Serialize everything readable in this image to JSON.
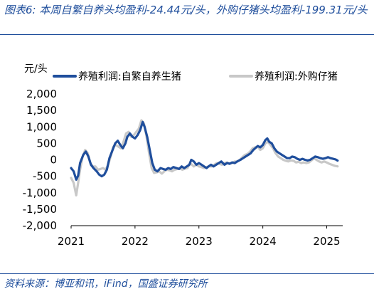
{
  "header": {
    "title": "图表6:  本周自繁自养头均盈利-24.44元/头，外购仔猪头均盈利-199.31元/头"
  },
  "footer": {
    "source": "资料来源：博亚和讯，iFind，国盛证券研究所"
  },
  "chart_data": {
    "type": "line",
    "ylabel": "元/头",
    "ylim": [
      -2000,
      2000
    ],
    "yticks": [
      2000,
      1500,
      1000,
      500,
      0,
      -500,
      -1000,
      -1500,
      -2000
    ],
    "ytick_labels": [
      "2,000",
      "1,500",
      "1,000",
      "500",
      "0",
      "-500",
      "-1,000",
      "-1,500",
      "-2,000"
    ],
    "xlim": [
      2021.0,
      2025.25
    ],
    "xticks": [
      2021,
      2022,
      2023,
      2024,
      2025
    ],
    "xtick_labels": [
      "2021",
      "2022",
      "2023",
      "2024",
      "2025"
    ],
    "grid": false,
    "legend_position": "top",
    "series": [
      {
        "name": "养殖利润:自繁自养生猪",
        "color": "#1f4e9c",
        "points": [
          [
            2021.0,
            -250
          ],
          [
            2021.04,
            -350
          ],
          [
            2021.08,
            -600
          ],
          [
            2021.11,
            -480
          ],
          [
            2021.14,
            -100
          ],
          [
            2021.19,
            150
          ],
          [
            2021.23,
            250
          ],
          [
            2021.27,
            100
          ],
          [
            2021.31,
            -150
          ],
          [
            2021.35,
            -250
          ],
          [
            2021.4,
            -350
          ],
          [
            2021.44,
            -450
          ],
          [
            2021.48,
            -500
          ],
          [
            2021.52,
            -450
          ],
          [
            2021.56,
            -300
          ],
          [
            2021.6,
            50
          ],
          [
            2021.65,
            300
          ],
          [
            2021.69,
            500
          ],
          [
            2021.73,
            580
          ],
          [
            2021.77,
            450
          ],
          [
            2021.81,
            350
          ],
          [
            2021.85,
            500
          ],
          [
            2021.88,
            700
          ],
          [
            2021.92,
            800
          ],
          [
            2021.96,
            700
          ],
          [
            2022.0,
            650
          ],
          [
            2022.04,
            750
          ],
          [
            2022.08,
            900
          ],
          [
            2022.12,
            1150
          ],
          [
            2022.15,
            1000
          ],
          [
            2022.19,
            700
          ],
          [
            2022.23,
            300
          ],
          [
            2022.27,
            -100
          ],
          [
            2022.31,
            -300
          ],
          [
            2022.35,
            -350
          ],
          [
            2022.4,
            -250
          ],
          [
            2022.44,
            -280
          ],
          [
            2022.48,
            -300
          ],
          [
            2022.52,
            -250
          ],
          [
            2022.56,
            -280
          ],
          [
            2022.6,
            -220
          ],
          [
            2022.65,
            -250
          ],
          [
            2022.69,
            -280
          ],
          [
            2022.73,
            -200
          ],
          [
            2022.77,
            -250
          ],
          [
            2022.81,
            -200
          ],
          [
            2022.85,
            -150
          ],
          [
            2022.88,
            0
          ],
          [
            2022.92,
            -50
          ],
          [
            2022.96,
            -150
          ],
          [
            2023.0,
            -100
          ],
          [
            2023.04,
            -150
          ],
          [
            2023.08,
            -200
          ],
          [
            2023.12,
            -250
          ],
          [
            2023.15,
            -200
          ],
          [
            2023.19,
            -150
          ],
          [
            2023.23,
            -200
          ],
          [
            2023.27,
            -150
          ],
          [
            2023.31,
            -100
          ],
          [
            2023.35,
            -50
          ],
          [
            2023.4,
            -150
          ],
          [
            2023.44,
            -100
          ],
          [
            2023.48,
            -120
          ],
          [
            2023.52,
            -80
          ],
          [
            2023.56,
            -100
          ],
          [
            2023.6,
            -50
          ],
          [
            2023.65,
            0
          ],
          [
            2023.69,
            50
          ],
          [
            2023.73,
            100
          ],
          [
            2023.77,
            150
          ],
          [
            2023.81,
            200
          ],
          [
            2023.85,
            300
          ],
          [
            2023.88,
            350
          ],
          [
            2023.92,
            420
          ],
          [
            2023.96,
            380
          ],
          [
            2024.0,
            450
          ],
          [
            2024.04,
            600
          ],
          [
            2024.07,
            650
          ],
          [
            2024.1,
            550
          ],
          [
            2024.14,
            500
          ],
          [
            2024.18,
            350
          ],
          [
            2024.22,
            250
          ],
          [
            2024.26,
            200
          ],
          [
            2024.3,
            150
          ],
          [
            2024.34,
            100
          ],
          [
            2024.38,
            50
          ],
          [
            2024.42,
            50
          ],
          [
            2024.46,
            100
          ],
          [
            2024.5,
            80
          ],
          [
            2024.54,
            30
          ],
          [
            2024.58,
            0
          ],
          [
            2024.62,
            30
          ],
          [
            2024.66,
            0
          ],
          [
            2024.7,
            -20
          ],
          [
            2024.74,
            0
          ],
          [
            2024.78,
            50
          ],
          [
            2024.82,
            100
          ],
          [
            2024.86,
            80
          ],
          [
            2024.9,
            50
          ],
          [
            2024.94,
            30
          ],
          [
            2024.98,
            50
          ],
          [
            2025.02,
            80
          ],
          [
            2025.06,
            50
          ],
          [
            2025.1,
            30
          ],
          [
            2025.14,
            10
          ],
          [
            2025.17,
            -24
          ]
        ]
      },
      {
        "name": "养殖利润:外购仔猪",
        "color": "#c8c8c8",
        "points": [
          [
            2021.0,
            -550
          ],
          [
            2021.04,
            -700
          ],
          [
            2021.08,
            -1080
          ],
          [
            2021.11,
            -700
          ],
          [
            2021.14,
            -300
          ],
          [
            2021.18,
            100
          ],
          [
            2021.22,
            300
          ],
          [
            2021.26,
            200
          ],
          [
            2021.3,
            -100
          ],
          [
            2021.34,
            -200
          ],
          [
            2021.38,
            -200
          ],
          [
            2021.42,
            -300
          ],
          [
            2021.46,
            -280
          ],
          [
            2021.5,
            -250
          ],
          [
            2021.54,
            -300
          ],
          [
            2021.58,
            -150
          ],
          [
            2021.62,
            100
          ],
          [
            2021.66,
            400
          ],
          [
            2021.7,
            450
          ],
          [
            2021.74,
            400
          ],
          [
            2021.78,
            350
          ],
          [
            2021.82,
            550
          ],
          [
            2021.86,
            800
          ],
          [
            2021.9,
            850
          ],
          [
            2021.94,
            700
          ],
          [
            2021.98,
            750
          ],
          [
            2022.02,
            850
          ],
          [
            2022.06,
            950
          ],
          [
            2022.1,
            1200
          ],
          [
            2022.14,
            1100
          ],
          [
            2022.18,
            700
          ],
          [
            2022.22,
            200
          ],
          [
            2022.26,
            -250
          ],
          [
            2022.3,
            -400
          ],
          [
            2022.34,
            -380
          ],
          [
            2022.38,
            -350
          ],
          [
            2022.42,
            -420
          ],
          [
            2022.46,
            -350
          ],
          [
            2022.5,
            -300
          ],
          [
            2022.54,
            -320
          ],
          [
            2022.58,
            -350
          ],
          [
            2022.62,
            -300
          ],
          [
            2022.66,
            -280
          ],
          [
            2022.7,
            -250
          ],
          [
            2022.74,
            -300
          ],
          [
            2022.78,
            -270
          ],
          [
            2022.82,
            -250
          ],
          [
            2022.86,
            -100
          ],
          [
            2022.89,
            -150
          ],
          [
            2022.92,
            -200
          ],
          [
            2022.96,
            -150
          ],
          [
            2023.0,
            -200
          ],
          [
            2023.04,
            -220
          ],
          [
            2023.08,
            -250
          ],
          [
            2023.12,
            -220
          ],
          [
            2023.16,
            -200
          ],
          [
            2023.2,
            -200
          ],
          [
            2023.24,
            -150
          ],
          [
            2023.28,
            -100
          ],
          [
            2023.32,
            -120
          ],
          [
            2023.36,
            -150
          ],
          [
            2023.4,
            -100
          ],
          [
            2023.44,
            -80
          ],
          [
            2023.48,
            -120
          ],
          [
            2023.52,
            -100
          ],
          [
            2023.56,
            -50
          ],
          [
            2023.6,
            -50
          ],
          [
            2023.64,
            0
          ],
          [
            2023.68,
            80
          ],
          [
            2023.72,
            150
          ],
          [
            2023.76,
            180
          ],
          [
            2023.8,
            250
          ],
          [
            2023.84,
            350
          ],
          [
            2023.88,
            380
          ],
          [
            2023.92,
            400
          ],
          [
            2023.96,
            300
          ],
          [
            2024.0,
            350
          ],
          [
            2024.04,
            500
          ],
          [
            2024.08,
            550
          ],
          [
            2024.12,
            450
          ],
          [
            2024.16,
            350
          ],
          [
            2024.2,
            200
          ],
          [
            2024.24,
            100
          ],
          [
            2024.28,
            50
          ],
          [
            2024.32,
            0
          ],
          [
            2024.36,
            -30
          ],
          [
            2024.4,
            -50
          ],
          [
            2024.44,
            -20
          ],
          [
            2024.48,
            -30
          ],
          [
            2024.52,
            -80
          ],
          [
            2024.56,
            -60
          ],
          [
            2024.6,
            -100
          ],
          [
            2024.64,
            -80
          ],
          [
            2024.68,
            -100
          ],
          [
            2024.72,
            -80
          ],
          [
            2024.76,
            -20
          ],
          [
            2024.8,
            50
          ],
          [
            2024.84,
            0
          ],
          [
            2024.88,
            -50
          ],
          [
            2024.92,
            -80
          ],
          [
            2024.96,
            -50
          ],
          [
            2025.0,
            -80
          ],
          [
            2025.04,
            -120
          ],
          [
            2025.08,
            -150
          ],
          [
            2025.12,
            -180
          ],
          [
            2025.17,
            -199
          ]
        ]
      }
    ]
  }
}
